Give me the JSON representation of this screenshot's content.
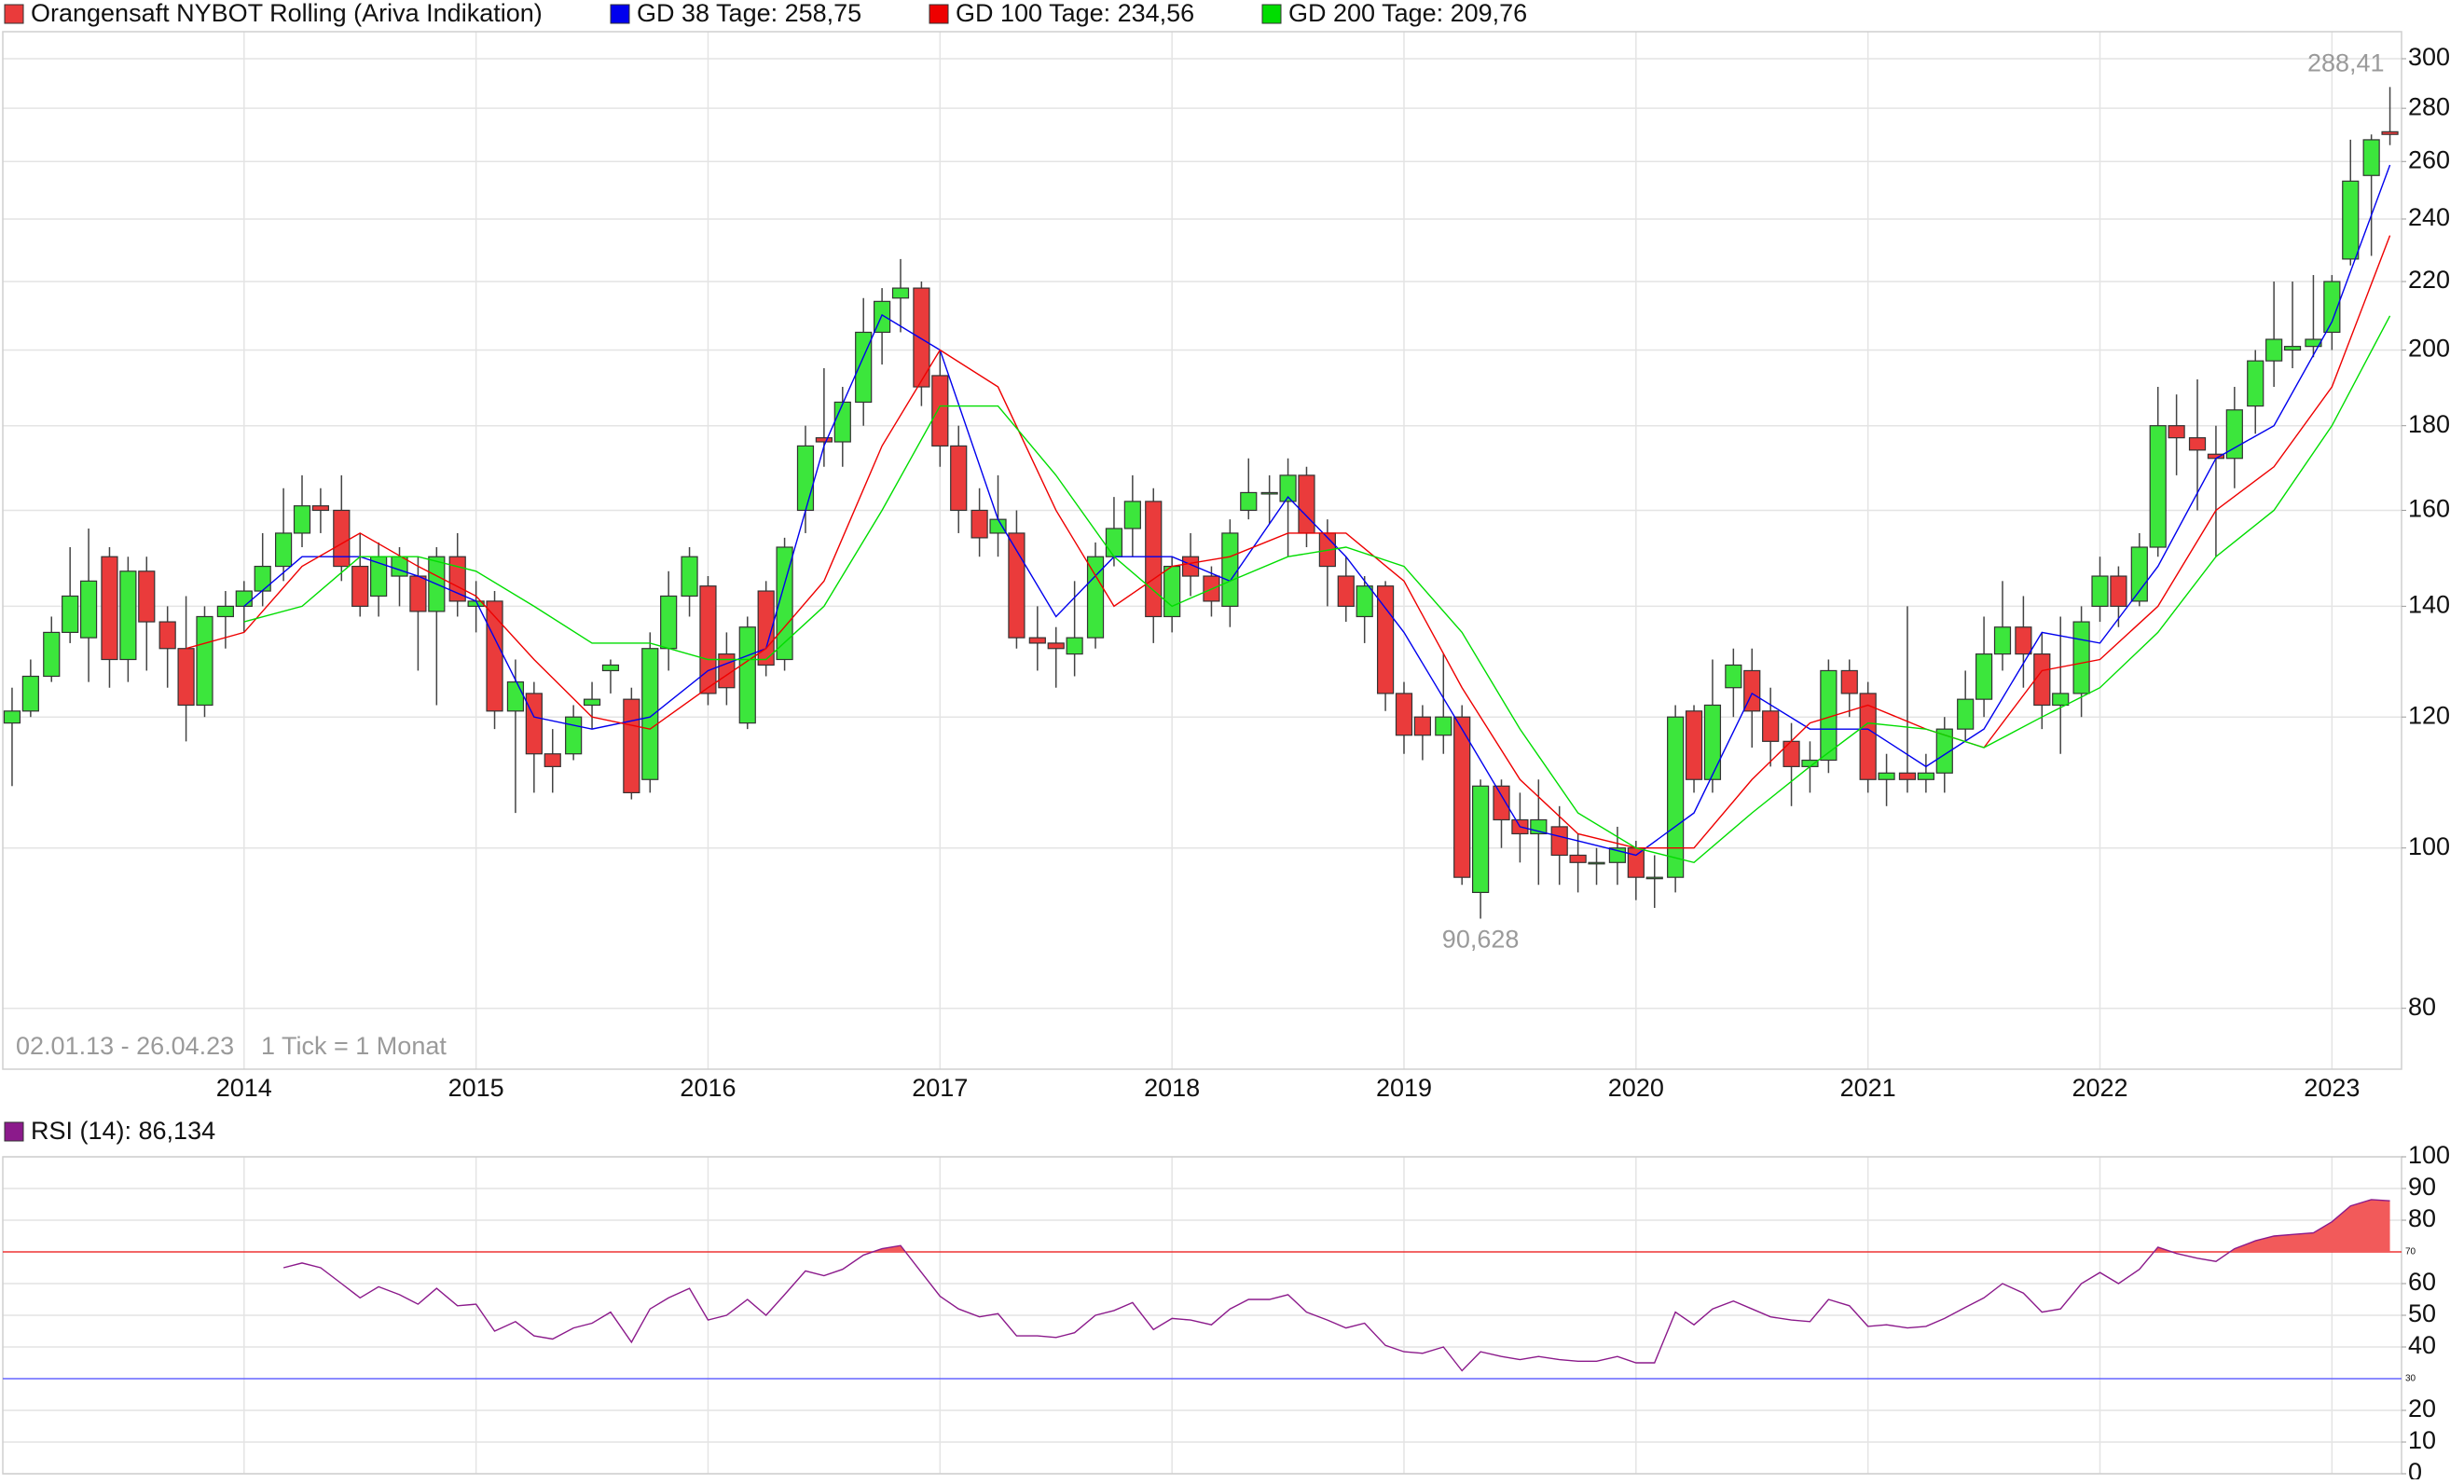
{
  "chart_data": [
    {
      "type": "candlestick",
      "title": "Orangensaft NYBOT Rolling (Ariva Indikation)",
      "date_range": "02.01.13 - 26.04.23",
      "interval_note": "1 Tick = 1 Monat",
      "max_label": "288,41",
      "min_label": "90,628",
      "x": [
        2013,
        2013.08,
        2013.17,
        2013.25,
        2013.33,
        2013.42,
        2013.5,
        2013.58,
        2013.67,
        2013.75,
        2013.83,
        2013.92,
        2014,
        2014.08,
        2014.17,
        2014.25,
        2014.33,
        2014.42,
        2014.5,
        2014.58,
        2014.67,
        2014.75,
        2014.83,
        2014.92,
        2015,
        2015.08,
        2015.17,
        2015.25,
        2015.33,
        2015.42,
        2015.5,
        2015.58,
        2015.67,
        2015.75,
        2015.83,
        2015.92,
        2016,
        2016.08,
        2016.17,
        2016.25,
        2016.33,
        2016.42,
        2016.5,
        2016.58,
        2016.67,
        2016.75,
        2016.83,
        2016.92,
        2017,
        2017.08,
        2017.17,
        2017.25,
        2017.33,
        2017.42,
        2017.5,
        2017.58,
        2017.67,
        2017.75,
        2017.83,
        2017.92,
        2018,
        2018.08,
        2018.17,
        2018.25,
        2018.33,
        2018.42,
        2018.5,
        2018.58,
        2018.67,
        2018.75,
        2018.83,
        2018.92,
        2019,
        2019.08,
        2019.17,
        2019.25,
        2019.33,
        2019.42,
        2019.5,
        2019.58,
        2019.67,
        2019.75,
        2019.83,
        2019.92,
        2020,
        2020.08,
        2020.17,
        2020.25,
        2020.33,
        2020.42,
        2020.5,
        2020.58,
        2020.67,
        2020.75,
        2020.83,
        2020.92,
        2021,
        2021.08,
        2021.17,
        2021.25,
        2021.33,
        2021.42,
        2021.5,
        2021.58,
        2021.67,
        2021.75,
        2021.83,
        2021.92,
        2022,
        2022.08,
        2022.17,
        2022.25,
        2022.33,
        2022.42,
        2022.5,
        2022.58,
        2022.67,
        2022.75,
        2022.83,
        2022.92,
        2023,
        2023.08,
        2023.17,
        2023.25
      ],
      "open": [
        119,
        121,
        127,
        135,
        134,
        150,
        130,
        147,
        137,
        132,
        122,
        138,
        140,
        143,
        148,
        155,
        161,
        160,
        148,
        142,
        146,
        146,
        139,
        150,
        140,
        141,
        121,
        124,
        114,
        114,
        122,
        128,
        123,
        110,
        132,
        142,
        144,
        131,
        119,
        143,
        130,
        160,
        177,
        176,
        186,
        205,
        215,
        218,
        193,
        175,
        160,
        155,
        155,
        134,
        133,
        131,
        134,
        150,
        156,
        162,
        138,
        150,
        146,
        140,
        160,
        164,
        162,
        168,
        155,
        146,
        138,
        144,
        124,
        120,
        117,
        120,
        94,
        109,
        104,
        102,
        103,
        99,
        98,
        98,
        100,
        96,
        96,
        121,
        110,
        125,
        128,
        121,
        116,
        112,
        113,
        128,
        124,
        110,
        111,
        110,
        111,
        118,
        123,
        131,
        136,
        131,
        122,
        124,
        140,
        146,
        141,
        152,
        180,
        177,
        173,
        172,
        185,
        197,
        200,
        201,
        205,
        227,
        255,
        271
      ],
      "high": [
        125,
        130,
        138,
        152,
        156,
        152,
        150,
        150,
        140,
        142,
        140,
        143,
        145,
        155,
        165,
        168,
        165,
        168,
        155,
        153,
        152,
        150,
        152,
        155,
        145,
        143,
        130,
        126,
        118,
        122,
        126,
        130,
        125,
        135,
        147,
        152,
        146,
        135,
        138,
        145,
        154,
        180,
        195,
        190,
        215,
        218,
        227,
        220,
        200,
        180,
        165,
        168,
        160,
        140,
        136,
        145,
        153,
        163,
        168,
        165,
        150,
        155,
        148,
        158,
        172,
        168,
        172,
        170,
        158,
        150,
        146,
        145,
        126,
        122,
        131,
        122,
        110,
        110,
        108,
        110,
        106,
        102,
        100,
        103,
        101,
        99,
        122,
        122,
        130,
        132,
        132,
        125,
        119,
        116,
        130,
        130,
        126,
        114,
        140,
        114,
        120,
        128,
        138,
        145,
        142,
        135,
        138,
        140,
        150,
        148,
        155,
        190,
        188,
        192,
        180,
        190,
        200,
        220,
        220,
        222,
        222,
        268,
        270,
        288.41
      ],
      "low": [
        109,
        120,
        126,
        133,
        126,
        125,
        126,
        128,
        125,
        116,
        120,
        132,
        135,
        140,
        145,
        152,
        155,
        145,
        138,
        138,
        140,
        128,
        122,
        138,
        135,
        118,
        105,
        108,
        108,
        113,
        118,
        124,
        107,
        108,
        128,
        138,
        122,
        122,
        118,
        127,
        128,
        155,
        170,
        170,
        180,
        196,
        205,
        185,
        170,
        155,
        150,
        150,
        132,
        128,
        125,
        127,
        132,
        148,
        150,
        133,
        135,
        142,
        138,
        136,
        158,
        157,
        150,
        152,
        140,
        137,
        133,
        121,
        114,
        113,
        114,
        95,
        90.628,
        100,
        98,
        95,
        95,
        94,
        95,
        95,
        93,
        92,
        94,
        108,
        108,
        120,
        115,
        112,
        106,
        108,
        111,
        120,
        108,
        106,
        108,
        108,
        108,
        116,
        120,
        128,
        125,
        118,
        114,
        120,
        137,
        136,
        140,
        150,
        168,
        160,
        150,
        165,
        178,
        190,
        195,
        198,
        200,
        225,
        228,
        266
      ],
      "close": [
        121,
        127,
        135,
        142,
        145,
        130,
        147,
        137,
        132,
        122,
        138,
        140,
        143,
        148,
        155,
        161,
        160,
        148,
        140,
        150,
        150,
        139,
        150,
        141,
        141,
        121,
        126,
        114,
        112,
        120,
        123,
        129,
        108,
        132,
        142,
        150,
        124,
        125,
        136,
        129,
        152,
        175,
        176,
        186,
        205,
        214,
        218,
        190,
        175,
        160,
        154,
        158,
        134,
        133,
        132,
        134,
        150,
        156,
        162,
        138,
        148,
        146,
        141,
        155,
        164,
        164,
        168,
        155,
        148,
        140,
        144,
        124,
        117,
        117,
        120,
        96,
        109,
        104,
        102,
        104,
        99,
        98,
        98,
        100,
        96,
        96,
        120,
        110,
        122,
        129,
        121,
        116,
        112,
        113,
        128,
        124,
        110,
        111,
        110,
        111,
        118,
        123,
        131,
        136,
        131,
        122,
        124,
        137,
        146,
        140,
        152,
        180,
        177,
        174,
        172,
        184,
        197,
        203,
        201,
        203,
        220,
        253,
        268,
        270
      ],
      "up_color": "#3ce63c",
      "down_color": "#ea3b3b",
      "xlim": [
        2012.96,
        2023.3
      ],
      "xticks": [
        2014,
        2015,
        2016,
        2017,
        2018,
        2019,
        2020,
        2021,
        2022,
        2023
      ],
      "ylim": [
        73.5,
        311.5
      ],
      "yticks": [
        80,
        100,
        120,
        140,
        160,
        180,
        200,
        220,
        240,
        260,
        280,
        300
      ],
      "log_scale": true,
      "grid": true,
      "lines": [
        {
          "name": "GD 38 Tage: 258,75",
          "color": "#0000ee",
          "x": [
            2014,
            2014.25,
            2014.5,
            2014.75,
            2015,
            2015.25,
            2015.5,
            2015.75,
            2016,
            2016.25,
            2016.5,
            2016.75,
            2017,
            2017.25,
            2017.5,
            2017.75,
            2018,
            2018.25,
            2018.5,
            2018.75,
            2019,
            2019.25,
            2019.5,
            2019.75,
            2020,
            2020.25,
            2020.5,
            2020.75,
            2021,
            2021.25,
            2021.5,
            2021.75,
            2022,
            2022.25,
            2022.5,
            2022.75,
            2023,
            2023.25
          ],
          "values": [
            140,
            150,
            150,
            146,
            141,
            120,
            118,
            120,
            128,
            132,
            175,
            210,
            200,
            158,
            138,
            150,
            150,
            145,
            163,
            150,
            135,
            118,
            103,
            101,
            99,
            105,
            124,
            118,
            118,
            112,
            118,
            135,
            133,
            148,
            172,
            180,
            208,
            258.75
          ]
        },
        {
          "name": "GD 100 Tage: 234,56",
          "color": "#ee0000",
          "x": [
            2013.75,
            2014,
            2014.25,
            2014.5,
            2014.75,
            2015,
            2015.25,
            2015.5,
            2015.75,
            2016,
            2016.25,
            2016.5,
            2016.75,
            2017,
            2017.25,
            2017.5,
            2017.75,
            2018,
            2018.25,
            2018.5,
            2018.75,
            2019,
            2019.25,
            2019.5,
            2019.75,
            2020,
            2020.25,
            2020.5,
            2020.75,
            2021,
            2021.25,
            2021.5,
            2021.75,
            2022,
            2022.25,
            2022.5,
            2022.75,
            2023,
            2023.25
          ],
          "values": [
            132,
            135,
            148,
            155,
            148,
            142,
            130,
            120,
            118,
            125,
            132,
            145,
            175,
            200,
            190,
            160,
            140,
            148,
            150,
            155,
            155,
            145,
            125,
            110,
            102,
            100,
            100,
            110,
            119,
            122,
            118,
            115,
            128,
            130,
            140,
            160,
            170,
            190,
            234.56
          ]
        },
        {
          "name": "GD 200 Tage: 209,76",
          "color": "#00dd00",
          "x": [
            2014,
            2014.25,
            2014.5,
            2014.75,
            2015,
            2015.25,
            2015.5,
            2015.75,
            2016,
            2016.25,
            2016.5,
            2016.75,
            2017,
            2017.25,
            2017.5,
            2017.75,
            2018,
            2018.25,
            2018.5,
            2018.75,
            2019,
            2019.25,
            2019.5,
            2019.75,
            2020,
            2020.25,
            2020.5,
            2020.75,
            2021,
            2021.25,
            2021.5,
            2021.75,
            2022,
            2022.25,
            2022.5,
            2022.75,
            2023,
            2023.25
          ],
          "values": [
            137,
            140,
            150,
            150,
            147,
            140,
            133,
            133,
            130,
            130,
            140,
            160,
            185,
            185,
            168,
            150,
            140,
            145,
            150,
            152,
            148,
            135,
            118,
            105,
            100,
            98,
            105,
            112,
            119,
            118,
            115,
            120,
            125,
            135,
            150,
            160,
            180,
            209.76
          ]
        }
      ]
    },
    {
      "type": "line",
      "title": "RSI (14): 86,134",
      "color": "#8b1a8b",
      "fill_color": "#f25a5a",
      "values": [
        null,
        null,
        null,
        null,
        null,
        null,
        null,
        null,
        null,
        null,
        null,
        null,
        null,
        null,
        65,
        66.5,
        65,
        60,
        55.5,
        59,
        56.5,
        53.5,
        58.5,
        53,
        53.5,
        45,
        48,
        43.5,
        42.5,
        46,
        47.5,
        51,
        41.5,
        52,
        55.5,
        58.5,
        48.5,
        50,
        55,
        50,
        56.5,
        64,
        62.5,
        64.5,
        69,
        71,
        72,
        63.5,
        56,
        52,
        49.5,
        50.5,
        43.5,
        43.5,
        43,
        44.5,
        50,
        51.5,
        54,
        45.5,
        49,
        48.5,
        47,
        52,
        55,
        55,
        56.5,
        51,
        48.5,
        46,
        47.5,
        40.5,
        38.5,
        38,
        40,
        32.5,
        38.5,
        37,
        36,
        37,
        36,
        35.5,
        35.5,
        37,
        35,
        35,
        51,
        47,
        52,
        54.5,
        52,
        49.5,
        48.5,
        48,
        55,
        53,
        46.5,
        47,
        46,
        46.5,
        49,
        52.5,
        55.5,
        60,
        57,
        51,
        52,
        60,
        63.5,
        60,
        64.5,
        71.5,
        69.5,
        68,
        67,
        71,
        73.5,
        75,
        75.5,
        76,
        79.5,
        84.5,
        86.5,
        86.134
      ],
      "ylim": [
        0,
        100
      ],
      "yticks": [
        0,
        10,
        20,
        40,
        50,
        60,
        80,
        90,
        100
      ],
      "levels": [
        {
          "value": 70,
          "color": "#ee3333"
        },
        {
          "value": 30,
          "color": "#6666ff"
        }
      ],
      "grid": true
    }
  ]
}
